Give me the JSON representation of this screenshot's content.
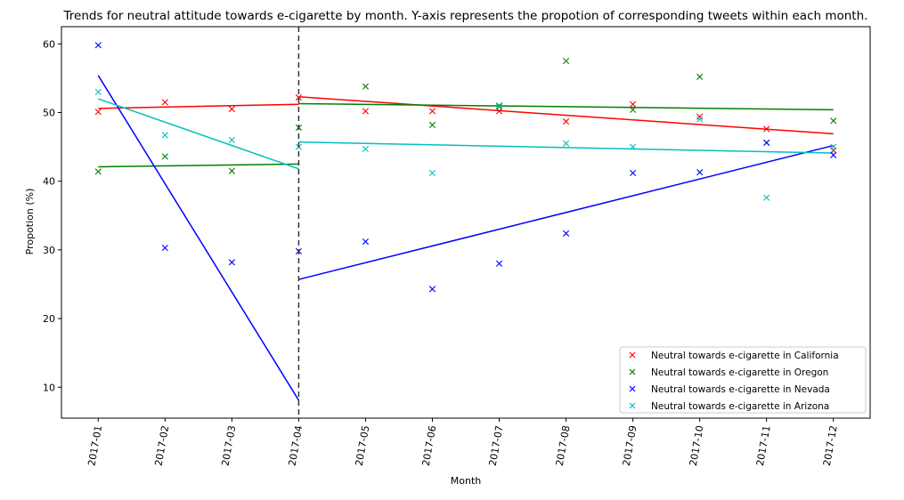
{
  "chart_data": {
    "type": "scatter",
    "title": "Trends for neutral attitude towards e-cigarette by month. Y-axis represents the propotion of corresponding tweets within each month.",
    "xlabel": "Month",
    "ylabel": "Propotion (%)",
    "categories": [
      "2017-01",
      "2017-02",
      "2017-03",
      "2017-04",
      "2017-05",
      "2017-06",
      "2017-07",
      "2017-08",
      "2017-09",
      "2017-10",
      "2017-11",
      "2017-12"
    ],
    "yticks": [
      10,
      20,
      30,
      40,
      50,
      60
    ],
    "ylim": [
      5.5,
      62.5
    ],
    "xlim": [
      -0.55,
      11.55
    ],
    "split_index": 3,
    "grid": false,
    "legend_position": "lower-right",
    "series": [
      {
        "name": "Neutral towards e-cigarette in California",
        "color": "#ff0000",
        "values": [
          50.1,
          51.5,
          50.5,
          52.2,
          50.2,
          50.2,
          50.2,
          48.7,
          51.2,
          49.4,
          47.6,
          44.5
        ],
        "fit_before": [
          50.6,
          51.2
        ],
        "fit_after": [
          52.3,
          46.9
        ]
      },
      {
        "name": "Neutral towards e-cigarette in Oregon",
        "color": "#008000",
        "values": [
          41.4,
          43.6,
          41.5,
          47.8,
          53.8,
          48.2,
          51.0,
          57.5,
          50.4,
          55.2,
          45.6,
          48.8
        ],
        "fit_before": [
          42.1,
          42.5
        ],
        "fit_after": [
          51.3,
          50.4
        ]
      },
      {
        "name": "Neutral towards e-cigarette in Nevada",
        "color": "#0000ff",
        "values": [
          59.8,
          30.3,
          28.2,
          29.8,
          31.2,
          24.3,
          28.0,
          32.4,
          41.2,
          41.3,
          45.6,
          43.8
        ],
        "fit_before": [
          55.4,
          8.1
        ],
        "fit_after": [
          25.7,
          45.2
        ]
      },
      {
        "name": "Neutral towards e-cigarette in Arizona",
        "color": "#00bfbf",
        "values": [
          53.0,
          46.7,
          46.0,
          45.0,
          44.7,
          41.2,
          50.8,
          45.5,
          45.0,
          49.0,
          37.6,
          45.0
        ],
        "fit_before": [
          52.0,
          41.8
        ],
        "fit_after": [
          45.7,
          44.1
        ]
      }
    ]
  }
}
